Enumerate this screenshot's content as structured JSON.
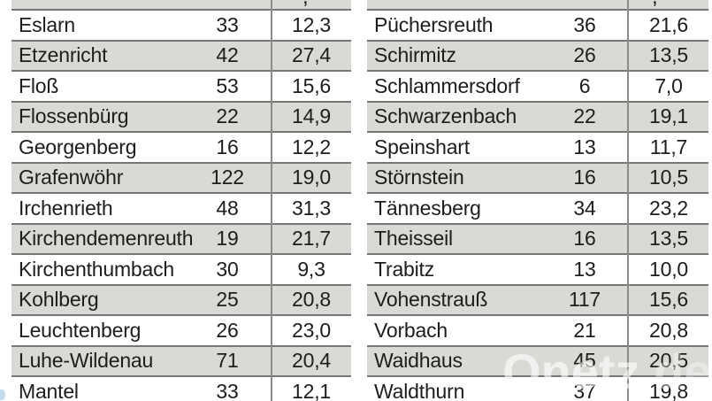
{
  "colors": {
    "row_shade": "#d9d9d6",
    "row_plain": "#ffffff",
    "separator_line": "#767674",
    "column_divider": "#8b8b89",
    "text": "#1d1d1b"
  },
  "watermark": {
    "brand": "Onetz",
    "suffix": ".de"
  },
  "partial_top_text": ",",
  "tables": [
    {
      "side": "left",
      "rows": [
        {
          "name": "Eslarn",
          "count": "33",
          "rate": "12,3"
        },
        {
          "name": "Etzenricht",
          "count": "42",
          "rate": "27,4"
        },
        {
          "name": "Floß",
          "count": "53",
          "rate": "15,6"
        },
        {
          "name": "Flossenbürg",
          "count": "22",
          "rate": "14,9"
        },
        {
          "name": "Georgenberg",
          "count": "16",
          "rate": "12,2"
        },
        {
          "name": "Grafenwöhr",
          "count": "122",
          "rate": "19,0"
        },
        {
          "name": "Irchenrieth",
          "count": "48",
          "rate": "31,3"
        },
        {
          "name": "Kirchendemenreuth",
          "count": "19",
          "rate": "21,7"
        },
        {
          "name": "Kirchenthumbach",
          "count": "30",
          "rate": "9,3"
        },
        {
          "name": "Kohlberg",
          "count": "25",
          "rate": "20,8"
        },
        {
          "name": "Leuchtenberg",
          "count": "26",
          "rate": "23,0"
        },
        {
          "name": "Luhe-Wildenau",
          "count": "71",
          "rate": "20,4"
        },
        {
          "name": "Mantel",
          "count": "33",
          "rate": "12,1"
        }
      ]
    },
    {
      "side": "right",
      "rows": [
        {
          "name": "Püchersreuth",
          "count": "36",
          "rate": "21,6"
        },
        {
          "name": "Schirmitz",
          "count": "26",
          "rate": "13,5"
        },
        {
          "name": "Schlammersdorf",
          "count": "6",
          "rate": "7,0"
        },
        {
          "name": "Schwarzenbach",
          "count": "22",
          "rate": "19,1"
        },
        {
          "name": "Speinshart",
          "count": "13",
          "rate": "11,7"
        },
        {
          "name": "Störnstein",
          "count": "16",
          "rate": "10,5"
        },
        {
          "name": "Tännesberg",
          "count": "34",
          "rate": "23,2"
        },
        {
          "name": "Theisseil",
          "count": "16",
          "rate": "13,5"
        },
        {
          "name": "Trabitz",
          "count": "13",
          "rate": "10,0"
        },
        {
          "name": "Vohenstrauß",
          "count": "117",
          "rate": "15,6"
        },
        {
          "name": "Vorbach",
          "count": "21",
          "rate": "20,8"
        },
        {
          "name": "Waidhaus",
          "count": "45",
          "rate": "20,5"
        },
        {
          "name": "Waldthurn",
          "count": "37",
          "rate": "19,8"
        }
      ]
    }
  ]
}
